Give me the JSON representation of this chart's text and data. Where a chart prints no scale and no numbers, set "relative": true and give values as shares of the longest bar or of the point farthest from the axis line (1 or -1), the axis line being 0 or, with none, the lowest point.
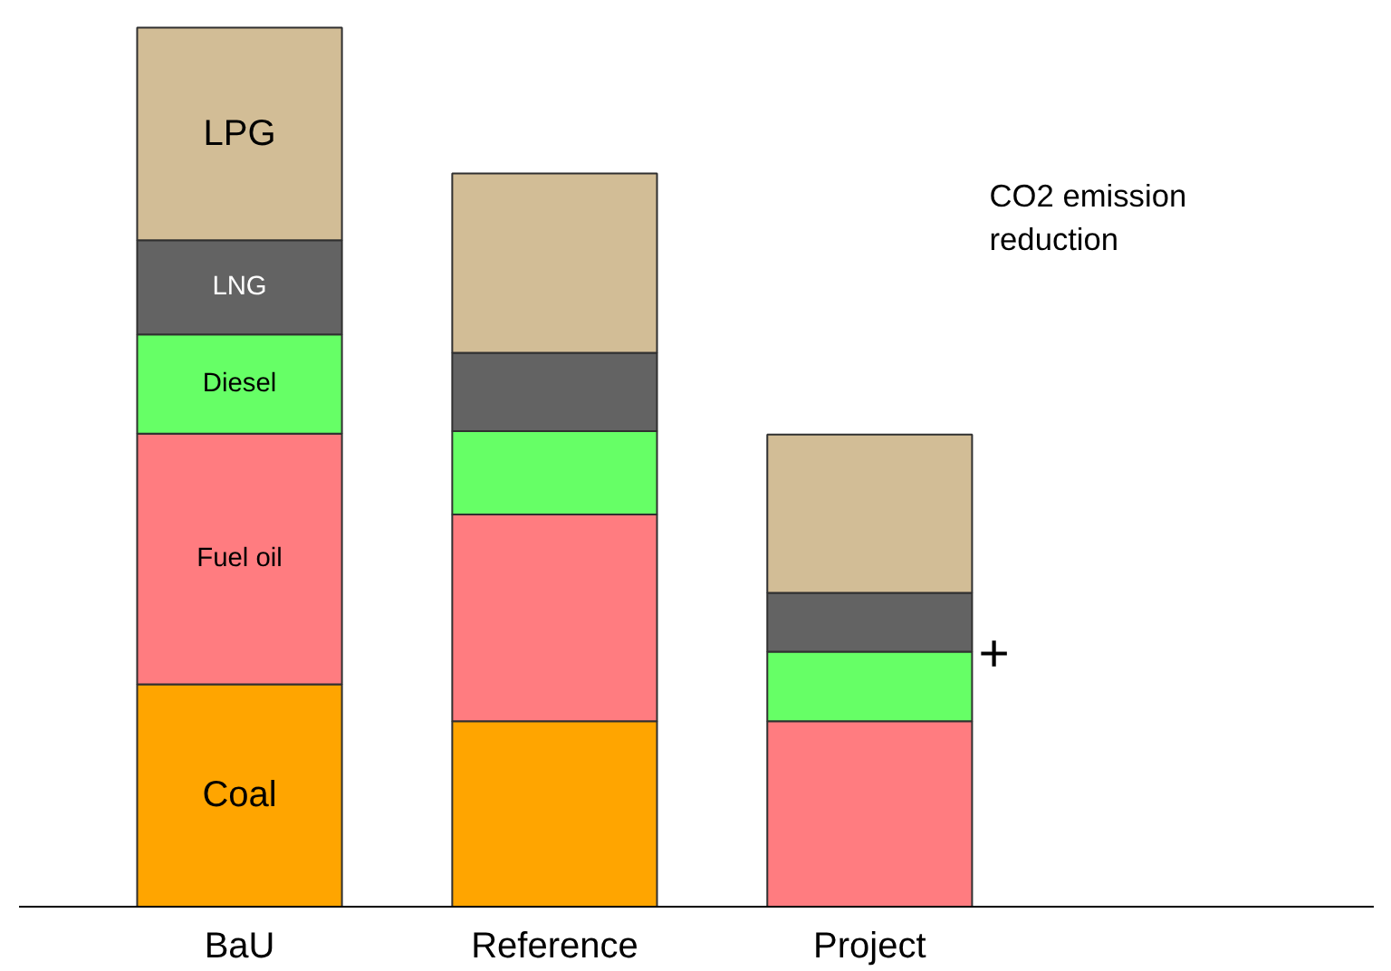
{
  "chart_data": {
    "type": "bar",
    "stacked": true,
    "relative": true,
    "categories": [
      "BaU",
      "Reference",
      "Project"
    ],
    "series": [
      {
        "name": "Coal",
        "color": "#ffa500",
        "values": [
          0.253,
          0.211,
          null
        ]
      },
      {
        "name": "Fuel oil",
        "color": "#ff7c80",
        "values": [
          0.285,
          0.235,
          0.211
        ]
      },
      {
        "name": "Diesel",
        "color": "#66ff66",
        "values": [
          0.113,
          0.095,
          0.079
        ]
      },
      {
        "name": "LNG",
        "color": "#636363",
        "values": [
          0.107,
          0.089,
          0.067
        ]
      },
      {
        "name": "LPG",
        "color": "#d2bd96",
        "values": [
          0.242,
          0.204,
          0.18
        ]
      }
    ],
    "annotations": [
      "CO2  emission\nreduction",
      "+"
    ],
    "grid": false
  }
}
